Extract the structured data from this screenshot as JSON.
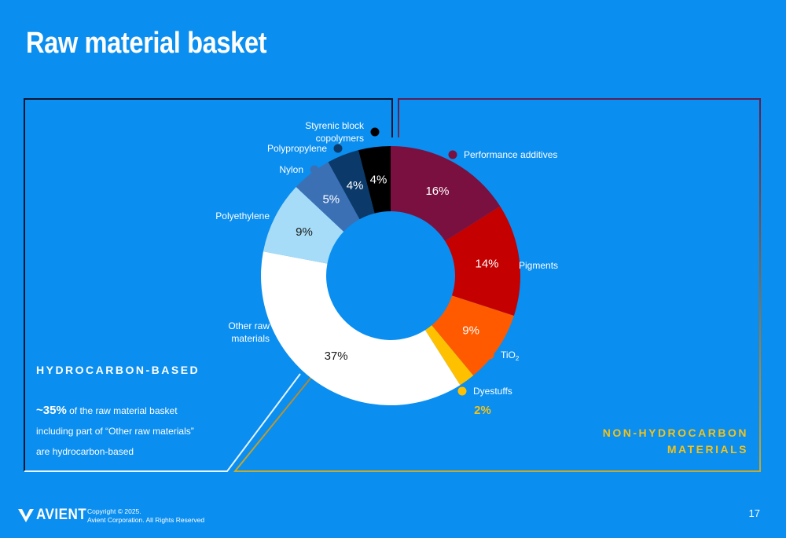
{
  "title": "Raw material basket",
  "colors": {
    "background": "#0a8ef0",
    "hydrocarbon_border": "#0a1630",
    "non_hydrocarbon_border_top": "#5a1f52",
    "non_hydrocarbon_border_bottom": "#c9a92a",
    "accent_yellow": "#f2c21b"
  },
  "chart_data": {
    "type": "pie",
    "donut": true,
    "slices": [
      {
        "label": "Performance additives",
        "value": 16,
        "value_label": "16%",
        "color": "#7a1040"
      },
      {
        "label": "Pigments",
        "value": 14,
        "value_label": "14%",
        "color": "#c40000"
      },
      {
        "label": "TiO",
        "label_sub": "2",
        "value": 9,
        "value_label": "9%",
        "color": "#ff5a00"
      },
      {
        "label": "Dyestuffs",
        "value": 2,
        "value_label": "2%",
        "color": "#ffc000"
      },
      {
        "label": "Other raw materials",
        "label_lines": [
          "Other raw",
          "materials"
        ],
        "value": 37,
        "value_label": "37%",
        "color": "#ffffff"
      },
      {
        "label": "Polyethylene",
        "value": 9,
        "value_label": "9%",
        "color": "#a6dcf7"
      },
      {
        "label": "Nylon",
        "value": 5,
        "value_label": "5%",
        "color": "#3c70b5"
      },
      {
        "label": "Polypropylene",
        "value": 4,
        "value_label": "4%",
        "color": "#0b3a6a"
      },
      {
        "label": "Styrenic block copolymers",
        "label_lines": [
          "Styrenic block",
          "copolymers"
        ],
        "value": 4,
        "value_label": "4%",
        "color": "#000000"
      }
    ]
  },
  "hydrocarbon": {
    "title": "HYDROCARBON-BASED",
    "highlight": "~35%",
    "text_line1": " of the raw material basket",
    "text_line2": "including part of “Other raw materials”",
    "text_line3": "are hydrocarbon-based"
  },
  "non_hydrocarbon": {
    "title_line1": "NON-HYDROCARBON",
    "title_line2": "MATERIALS"
  },
  "footer": {
    "logo": "AVIENT",
    "copyright_line1": "Copyright © 2025.",
    "copyright_line2": "Avient Corporation. All Rights Reserved",
    "page_number": "17"
  }
}
